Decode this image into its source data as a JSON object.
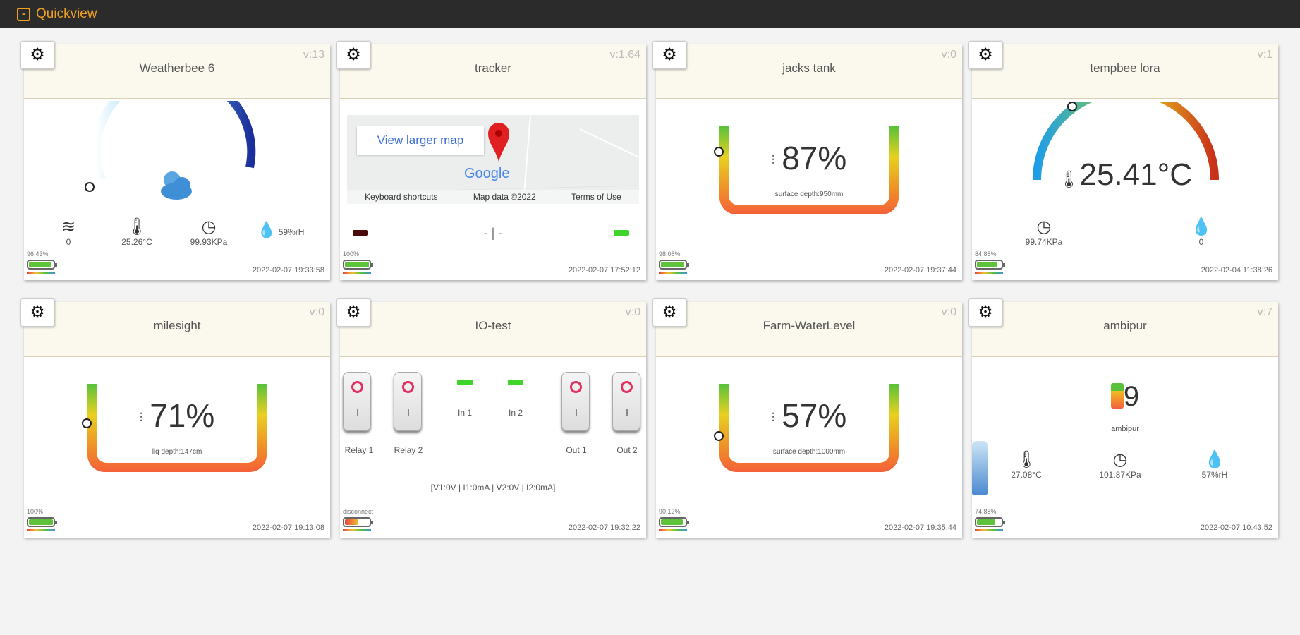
{
  "app": {
    "title": "Quickview"
  },
  "cards": [
    {
      "name": "Weatherbee 6",
      "version": "v:13",
      "date": "2022-02-07 19:33:58",
      "battery_pct": "96.43%",
      "battery_level": 0.9,
      "sensors": [
        {
          "icon": "wind-icon",
          "value": "0"
        },
        {
          "icon": "thermometer-icon",
          "value": "25.26°C"
        },
        {
          "icon": "pressure-gauge-icon",
          "value": "99.93KPa"
        },
        {
          "icon": "humidity-icon",
          "value": "59%rH"
        }
      ],
      "weather_icon": "partly-cloudy-icon"
    },
    {
      "name": "tracker",
      "version": "v:1.64",
      "date": "2022-02-07 17:52:12",
      "battery_pct": "100%",
      "battery_level": 1.0,
      "map": {
        "view_larger": "View larger map",
        "brand": "Google",
        "shortcuts": "Keyboard shortcuts",
        "map_data": "Map data ©2022",
        "terms": "Terms of Use"
      },
      "status": "- | -"
    },
    {
      "name": "jacks tank",
      "version": "v:0",
      "date": "2022-02-07 19:37:44",
      "battery_pct": "98.08%",
      "battery_level": 0.95,
      "tank": {
        "percent": "87%",
        "level": 0.87,
        "label": "surface depth:950mm"
      }
    },
    {
      "name": "tempbee lora",
      "version": "v:1",
      "date": "2022-02-04 11:38:26",
      "battery_pct": "84.88%",
      "battery_level": 0.85,
      "temperature": "25.41°C",
      "temperature_level": 0.3,
      "sensors": [
        {
          "icon": "pressure-gauge-icon",
          "value": "99.74KPa"
        },
        {
          "icon": "humidity-icon",
          "value": "0"
        }
      ]
    },
    {
      "name": "milesight",
      "version": "v:0",
      "date": "2022-02-07 19:13:08",
      "battery_pct": "100%",
      "battery_level": 1.0,
      "tank": {
        "percent": "71%",
        "level": 0.71,
        "label": "liq depth:147cm"
      }
    },
    {
      "name": "IO-test",
      "version": "v:0",
      "date": "2022-02-07 19:32:22",
      "battery_pct": "disconnect",
      "battery_level": 0.55,
      "switches": [
        "Relay 1",
        "Relay 2",
        "Out 1",
        "Out 2"
      ],
      "inputs": [
        "In 1",
        "In 2"
      ],
      "readout": "[V1:0V | I1:0mA | V2:0V | I2:0mA]"
    },
    {
      "name": "Farm-WaterLevel",
      "version": "v:0",
      "date": "2022-02-07 19:35:44",
      "battery_pct": "90.12%",
      "battery_level": 0.9,
      "tank": {
        "percent": "57%",
        "level": 0.57,
        "label": "surface depth:1000mm"
      }
    },
    {
      "name": "ambipur",
      "version": "v:7",
      "date": "2022-02-07 10:43:52",
      "battery_pct": "74.88%",
      "battery_level": 0.75,
      "count": "9",
      "count_label": "ambipur",
      "sensors": [
        {
          "icon": "thermometer-icon",
          "value": "27.08°C"
        },
        {
          "icon": "pressure-gauge-icon",
          "value": "101.87KPa"
        },
        {
          "icon": "humidity-icon",
          "value": "57%rH"
        }
      ]
    }
  ],
  "colors": {
    "accent": "#f0a020",
    "battery": "#5ec23a",
    "led": "#3ed42a"
  }
}
